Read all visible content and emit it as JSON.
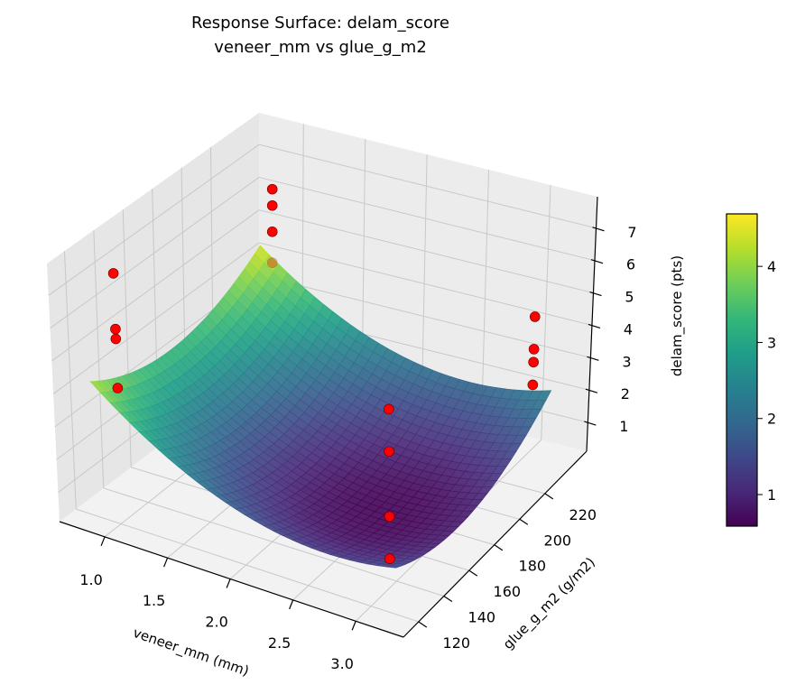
{
  "chart_data": {
    "type": "surface",
    "title": [
      "Response Surface: delam_score",
      "veneer_mm vs glue_g_m2"
    ],
    "xlabel": "veneer_mm (mm)",
    "ylabel": "glue_g_m2 (g/m2)",
    "zlabel": "delam_score (pts)",
    "xlim": [
      0.64,
      3.38
    ],
    "ylim": [
      108,
      253
    ],
    "zlim": [
      0.11,
      7.97
    ],
    "xticks": [
      "1.0",
      "1.5",
      "2.0",
      "2.5",
      "3.0"
    ],
    "yticks": [
      "120",
      "140",
      "160",
      "180",
      "200",
      "220"
    ],
    "zticks": [
      "1",
      "2",
      "3",
      "4",
      "5",
      "6",
      "7"
    ],
    "grid": true,
    "colormap": "viridis",
    "surface": {
      "x_range": [
        0.8,
        3.2
      ],
      "y_range": [
        120,
        240
      ],
      "model": {
        "z0": 0.6,
        "x0": 2.6,
        "y0": 170,
        "y_scale": 60,
        "b_xx": 0.85,
        "c_yy": 0.99,
        "d_xy": 0.104
      },
      "alpha": 0.9
    },
    "scatter": {
      "color": "#ff0000",
      "points": [
        {
          "x": 0.9,
          "y": 130,
          "z": 7.3
        },
        {
          "x": 0.9,
          "y": 130,
          "z": 5.6
        },
        {
          "x": 0.9,
          "y": 130,
          "z": 5.3
        },
        {
          "x": 0.9,
          "y": 130,
          "z": 3.8
        },
        {
          "x": 0.9,
          "y": 240,
          "z": 6.3
        },
        {
          "x": 0.9,
          "y": 240,
          "z": 5.8
        },
        {
          "x": 0.9,
          "y": 240,
          "z": 5.0
        },
        {
          "x": 0.9,
          "y": 240,
          "z": 4.05
        },
        {
          "x": 3.1,
          "y": 125,
          "z": 6.1
        },
        {
          "x": 3.1,
          "y": 125,
          "z": 4.8
        },
        {
          "x": 3.1,
          "y": 125,
          "z": 2.8
        },
        {
          "x": 3.1,
          "y": 125,
          "z": 1.5
        },
        {
          "x": 3.1,
          "y": 235,
          "z": 4.7
        },
        {
          "x": 3.1,
          "y": 235,
          "z": 3.7
        },
        {
          "x": 3.1,
          "y": 235,
          "z": 3.3
        },
        {
          "x": 3.1,
          "y": 235,
          "z": 2.6
        }
      ]
    },
    "colorbar": {
      "vmin": 0.585,
      "vmax": 4.69,
      "ticks": [
        "1",
        "2",
        "3",
        "4"
      ]
    }
  }
}
